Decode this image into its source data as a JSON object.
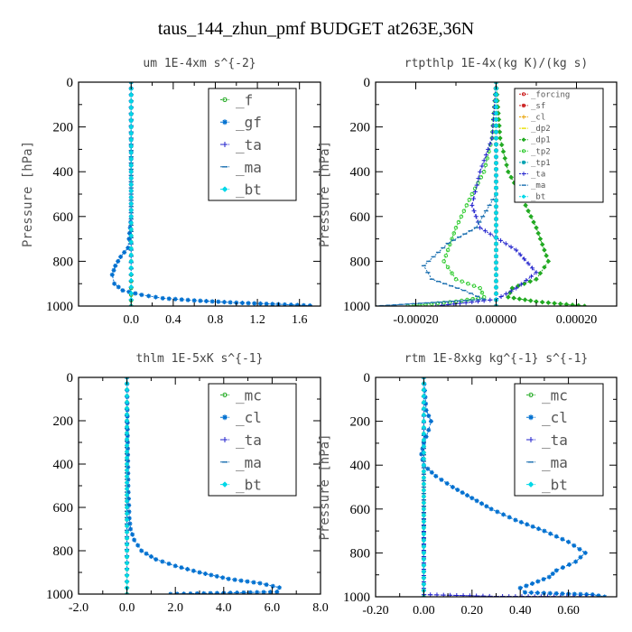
{
  "figure_title": "taus_144_zhun_pmf  BUDGET at263E,36N",
  "chart_data": [
    {
      "type": "line",
      "title": "um  1E-4xm s^{-2}",
      "ylabel": "Pressure [hPa]",
      "xlim": [
        -0.5,
        1.8
      ],
      "ylim": [
        1000,
        0
      ],
      "xticks": [
        0.0,
        0.4,
        0.8,
        1.2,
        1.6
      ],
      "xtick_labels": [
        "0.0",
        "0.4",
        "0.8",
        "1.2",
        "1.6"
      ],
      "yticks": [
        0,
        200,
        400,
        600,
        800,
        1000
      ],
      "ytick_labels": [
        "0",
        "200",
        "400",
        "600",
        "800",
        "1000"
      ],
      "legend_placement": "top-right",
      "series": [
        {
          "name": "_f",
          "color": "#22aa22",
          "marker": "circle",
          "x": [
            0,
            0,
            0,
            0,
            0,
            0,
            0
          ],
          "y": [
            0,
            200,
            400,
            600,
            800,
            950,
            1000
          ]
        },
        {
          "name": "_gf",
          "color": "#0070d0",
          "marker": "star",
          "x": [
            0,
            0,
            0,
            -0.02,
            -0.03,
            -0.1,
            -0.15,
            -0.18,
            -0.16,
            -0.08,
            0.1,
            0.3,
            0.6,
            1.0,
            1.4,
            1.7,
            1.7
          ],
          "y": [
            0,
            400,
            600,
            700,
            740,
            780,
            820,
            860,
            900,
            930,
            950,
            965,
            975,
            985,
            992,
            998,
            1000
          ]
        },
        {
          "name": "_ta",
          "color": "#2020cc",
          "marker": "plus",
          "x": [
            0,
            0,
            0
          ],
          "y": [
            0,
            500,
            1000
          ]
        },
        {
          "name": "_ma",
          "color": "#1a6fb0",
          "marker": "dash",
          "x": [
            0,
            0,
            0
          ],
          "y": [
            0,
            500,
            1000
          ]
        },
        {
          "name": "_bt",
          "color": "#00d8e8",
          "marker": "diamond",
          "x": [
            0,
            0,
            0,
            0,
            0,
            0
          ],
          "y": [
            0,
            200,
            400,
            600,
            800,
            1000
          ]
        }
      ]
    },
    {
      "type": "line",
      "title": "rtpthlp  1E-4x(kg K)/(kg s)",
      "ylabel": "Pressure [hPa]",
      "xlim": [
        -0.0003,
        0.0003
      ],
      "ylim": [
        1000,
        0
      ],
      "xticks": [
        -0.0002,
        0.0,
        0.0002
      ],
      "xtick_labels": [
        "-0.00020",
        "0.00000",
        "0.00020"
      ],
      "yticks": [
        0,
        200,
        400,
        600,
        800,
        1000
      ],
      "ytick_labels": [
        "0",
        "200",
        "400",
        "600",
        "800",
        "1000"
      ],
      "legend_placement": "top-right",
      "series": [
        {
          "name": "_forcing",
          "color": "#cc2222",
          "marker": "circle",
          "x": [
            0,
            0,
            0
          ],
          "y": [
            0,
            500,
            1000
          ]
        },
        {
          "name": "_sf",
          "color": "#cc2222",
          "marker": "star",
          "x": [
            0,
            0,
            0
          ],
          "y": [
            0,
            500,
            1000
          ]
        },
        {
          "name": "_cl",
          "color": "#e8a000",
          "marker": "plus",
          "x": [
            0,
            0,
            0
          ],
          "y": [
            0,
            500,
            1000
          ]
        },
        {
          "name": "_dp2",
          "color": "#e8e000",
          "marker": "dash",
          "x": [
            0,
            0,
            0
          ],
          "y": [
            0,
            500,
            1000
          ]
        },
        {
          "name": "_dp1",
          "color": "#22aa22",
          "marker": "diamond",
          "x": [
            0,
            1e-05,
            3e-05,
            6e-05,
            0.0001,
            0.00013,
            0.0001,
            4e-05,
            3e-05,
            0.0001,
            0.00022
          ],
          "y": [
            0,
            250,
            400,
            500,
            650,
            800,
            880,
            920,
            960,
            980,
            1000
          ]
        },
        {
          "name": "_tp2",
          "color": "#33cc33",
          "marker": "circle",
          "x": [
            0,
            -1e-05,
            -3e-05,
            -6e-05,
            -0.0001,
            -0.00013,
            -0.0001,
            -4e-05,
            -3e-05,
            -0.0001,
            -0.00022
          ],
          "y": [
            0,
            250,
            400,
            500,
            650,
            800,
            880,
            920,
            960,
            980,
            1000
          ]
        },
        {
          "name": "_tp1",
          "color": "#00a0b0",
          "marker": "star",
          "x": [
            0,
            0,
            0
          ],
          "y": [
            0,
            500,
            1000
          ]
        },
        {
          "name": "_ta",
          "color": "#2020cc",
          "marker": "plus",
          "x": [
            0,
            -1e-05,
            -4e-05,
            -6e-05,
            -4e-05,
            5e-05,
            0.0001,
            5e-05,
            0.0,
            -0.00015
          ],
          "y": [
            0,
            250,
            400,
            550,
            650,
            750,
            850,
            920,
            970,
            1000
          ]
        },
        {
          "name": "_ma",
          "color": "#1a6fb0",
          "marker": "dash",
          "x": [
            0,
            0,
            -5e-05,
            -0.00012,
            -0.00018,
            -0.00016,
            -8e-05,
            -3e-05,
            -0.0003
          ],
          "y": [
            0,
            500,
            650,
            720,
            820,
            880,
            930,
            970,
            1000
          ]
        },
        {
          "name": "_bt",
          "color": "#00d8e8",
          "marker": "diamond",
          "x": [
            0,
            0,
            0
          ],
          "y": [
            0,
            500,
            1000
          ]
        }
      ]
    },
    {
      "type": "line",
      "title": "thlm  1E-5xK s^{-1}",
      "ylabel": "",
      "xlim": [
        -2.0,
        8.0
      ],
      "ylim": [
        1000,
        0
      ],
      "xticks": [
        -2.0,
        0.0,
        2.0,
        4.0,
        6.0,
        8.0
      ],
      "xtick_labels": [
        "-2.0",
        "0.0",
        "2.0",
        "4.0",
        "6.0",
        "8.0"
      ],
      "yticks": [
        0,
        200,
        400,
        600,
        800,
        1000
      ],
      "ytick_labels": [
        "0",
        "200",
        "400",
        "600",
        "800",
        "1000"
      ],
      "legend_placement": "top-right",
      "series": [
        {
          "name": "_mc",
          "color": "#22aa22",
          "marker": "circle",
          "x": [
            0,
            0,
            0,
            0,
            0,
            0
          ],
          "y": [
            0,
            200,
            400,
            600,
            800,
            1000
          ]
        },
        {
          "name": "_cl",
          "color": "#0070d0",
          "marker": "star",
          "x": [
            0,
            0.03,
            0.05,
            0.1,
            0.15,
            0.3,
            0.6,
            1.2,
            2.0,
            3.0,
            4.2,
            5.5,
            6.3,
            6.2,
            4.0,
            1.8
          ],
          "y": [
            0,
            300,
            500,
            650,
            700,
            750,
            800,
            840,
            870,
            900,
            930,
            950,
            970,
            990,
            995,
            1000
          ]
        },
        {
          "name": "_ta",
          "color": "#2020cc",
          "marker": "plus",
          "x": [
            0,
            0,
            0
          ],
          "y": [
            0,
            500,
            1000
          ]
        },
        {
          "name": "_ma",
          "color": "#1a6fb0",
          "marker": "dash",
          "x": [
            0,
            0,
            0
          ],
          "y": [
            0,
            500,
            1000
          ]
        },
        {
          "name": "_bt",
          "color": "#00d8e8",
          "marker": "diamond",
          "x": [
            0,
            0,
            0,
            0,
            0,
            0
          ],
          "y": [
            0,
            200,
            400,
            600,
            800,
            1000
          ]
        }
      ]
    },
    {
      "type": "line",
      "title": "rtm  1E-8xkg kg^{-1} s^{-1}",
      "ylabel": "Pressure [hPa]",
      "xlim": [
        -0.2,
        0.8
      ],
      "ylim": [
        1000,
        0
      ],
      "xticks": [
        -0.2,
        0.0,
        0.2,
        0.4,
        0.6
      ],
      "xtick_labels": [
        "-0.20",
        "0.00",
        "0.20",
        "0.40",
        "0.60"
      ],
      "yticks": [
        0,
        200,
        400,
        600,
        800,
        1000
      ],
      "ytick_labels": [
        "0",
        "200",
        "400",
        "600",
        "800",
        "1000"
      ],
      "legend_placement": "top-right",
      "series": [
        {
          "name": "_mc",
          "color": "#22aa22",
          "marker": "circle",
          "x": [
            0,
            0,
            0,
            0,
            0,
            0
          ],
          "y": [
            0,
            200,
            400,
            600,
            800,
            1000
          ]
        },
        {
          "name": "_cl",
          "color": "#0070d0",
          "marker": "star",
          "x": [
            0,
            0.01,
            0.03,
            0.02,
            0.0,
            -0.01,
            0.0,
            0.05,
            0.12,
            0.2,
            0.28,
            0.38,
            0.5,
            0.6,
            0.67,
            0.63,
            0.55,
            0.52,
            0.45,
            0.4,
            0.42,
            0.55,
            0.7,
            0.75
          ],
          "y": [
            0,
            150,
            200,
            240,
            300,
            350,
            400,
            450,
            500,
            550,
            600,
            650,
            700,
            750,
            800,
            840,
            880,
            910,
            940,
            960,
            980,
            985,
            990,
            1000
          ]
        },
        {
          "name": "_ta",
          "color": "#2020cc",
          "marker": "plus",
          "x": [
            0,
            0,
            0,
            0.3,
            0.7
          ],
          "y": [
            0,
            500,
            990,
            998,
            1000
          ]
        },
        {
          "name": "_ma",
          "color": "#1a6fb0",
          "marker": "dash",
          "x": [
            0,
            0,
            0
          ],
          "y": [
            0,
            500,
            1000
          ]
        },
        {
          "name": "_bt",
          "color": "#00d8e8",
          "marker": "diamond",
          "x": [
            0,
            0,
            0,
            0,
            0,
            0
          ],
          "y": [
            0,
            200,
            400,
            600,
            800,
            1000
          ]
        }
      ]
    }
  ]
}
